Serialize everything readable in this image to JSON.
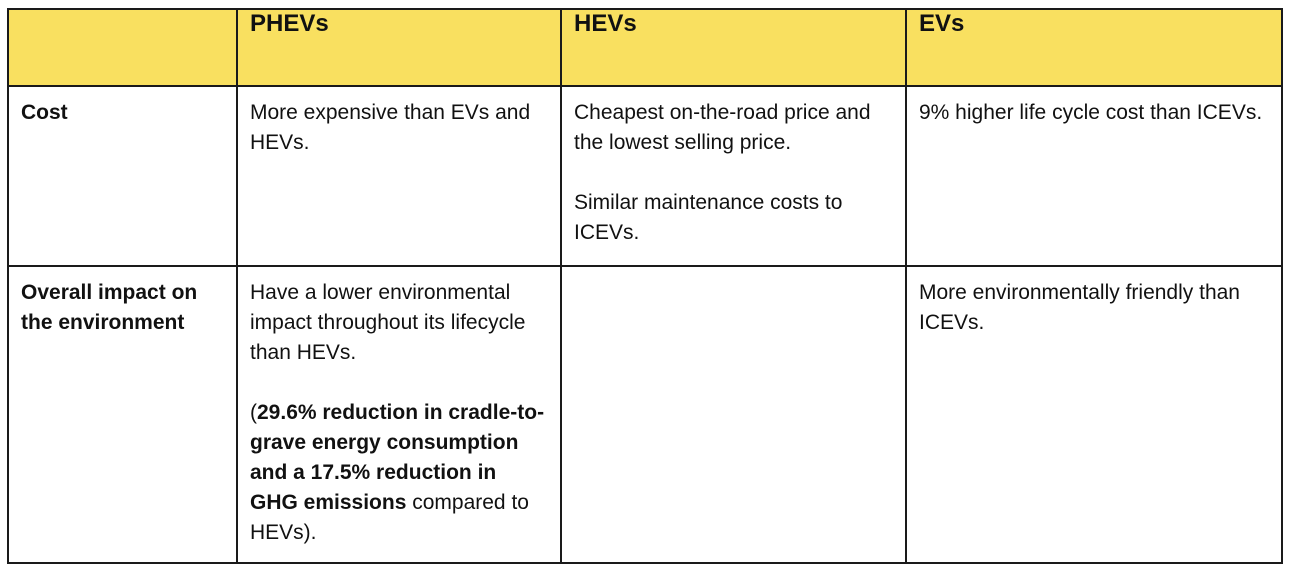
{
  "table": {
    "header": {
      "corner": "",
      "columns": [
        "PHEVs",
        "HEVs",
        "EVs"
      ]
    },
    "rows": [
      {
        "label": "Cost",
        "cells": [
          {
            "paragraphs": [
              {
                "text": "More expensive than EVs and HEVs."
              }
            ]
          },
          {
            "paragraphs": [
              {
                "text": "Cheapest on-the-road price and the lowest selling price."
              },
              {
                "text": "Similar maintenance costs to ICEVs."
              }
            ]
          },
          {
            "paragraphs": [
              {
                "text": "9% higher life cycle cost than ICEVs."
              }
            ]
          }
        ]
      },
      {
        "label": "Overall impact on the environment",
        "cells": [
          {
            "paragraphs": [
              {
                "text": "Have a lower environmental impact throughout its lifecycle than HEVs."
              },
              {
                "open": "(",
                "bold": "29.6% reduction in cradle-to-grave energy consumption and a 17.5% reduction in GHG emissions",
                "close": " compared to HEVs)."
              }
            ]
          },
          {
            "paragraphs": []
          },
          {
            "paragraphs": [
              {
                "text": "More environmentally friendly than ICEVs."
              }
            ]
          }
        ]
      }
    ]
  }
}
